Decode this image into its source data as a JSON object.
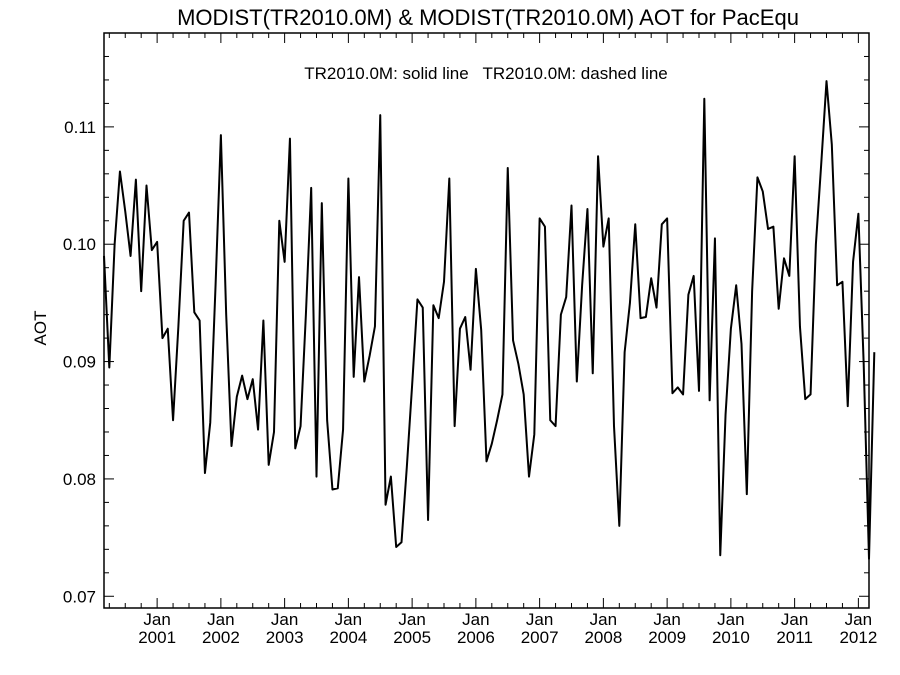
{
  "chart_data": {
    "type": "line",
    "title": "MODIST(TR2010.0M) & MODIST(TR2010.0M)  AOT for PacEqu",
    "annotation": "TR2010.0M: solid line   TR2010.0M: dashed line",
    "xlabel": "",
    "ylabel": "AOT",
    "ylim": [
      0.069,
      0.118
    ],
    "xlim": [
      "2000-03",
      "2012-03"
    ],
    "y_ticks": [
      0.07,
      0.08,
      0.09,
      0.1,
      0.11
    ],
    "y_tick_labels": [
      "0.07",
      "0.08",
      "0.09",
      "0.10",
      "0.11"
    ],
    "x_ticks": [
      {
        "month": "Jan",
        "year": "2001",
        "date": "2001-01"
      },
      {
        "month": "Jan",
        "year": "2002",
        "date": "2002-01"
      },
      {
        "month": "Jan",
        "year": "2003",
        "date": "2003-01"
      },
      {
        "month": "Jan",
        "year": "2004",
        "date": "2004-01"
      },
      {
        "month": "Jan",
        "year": "2005",
        "date": "2005-01"
      },
      {
        "month": "Jan",
        "year": "2006",
        "date": "2006-01"
      },
      {
        "month": "Jan",
        "year": "2007",
        "date": "2007-01"
      },
      {
        "month": "Jan",
        "year": "2008",
        "date": "2008-01"
      },
      {
        "month": "Jan",
        "year": "2009",
        "date": "2009-01"
      },
      {
        "month": "Jan",
        "year": "2010",
        "date": "2010-01"
      },
      {
        "month": "Jan",
        "year": "2011",
        "date": "2011-01"
      },
      {
        "month": "Jan",
        "year": "2012",
        "date": "2012-01"
      }
    ],
    "grid": false,
    "series": [
      {
        "style": "solid",
        "color": "#000000",
        "start": "2000-03",
        "step": "month",
        "values": [
          0.099,
          0.0895,
          0.1,
          0.1062,
          0.1028,
          0.099,
          0.1055,
          0.096,
          0.105,
          0.0995,
          0.1002,
          0.092,
          0.0928,
          0.085,
          0.093,
          0.102,
          0.1027,
          0.0942,
          0.0935,
          0.0805,
          0.0848,
          0.0965,
          0.1093,
          0.094,
          0.0828,
          0.087,
          0.0888,
          0.0868,
          0.0885,
          0.0842,
          0.0935,
          0.0812,
          0.084,
          0.102,
          0.0985,
          0.109,
          0.0826,
          0.0845,
          0.094,
          0.1048,
          0.0802,
          0.1035,
          0.085,
          0.0791,
          0.0792,
          0.0842,
          0.1056,
          0.0887,
          0.0972,
          0.0883,
          0.0905,
          0.093,
          0.111,
          0.0778,
          0.0802,
          0.0742,
          0.0746,
          0.081,
          0.088,
          0.0953,
          0.0946,
          0.0765,
          0.0948,
          0.0937,
          0.0968,
          0.1056,
          0.0845,
          0.0928,
          0.0938,
          0.0893,
          0.0979,
          0.0927,
          0.0815,
          0.083,
          0.085,
          0.0872,
          0.1065,
          0.0918,
          0.0898,
          0.0872,
          0.0802,
          0.0838,
          0.1022,
          0.1015,
          0.085,
          0.0845,
          0.094,
          0.0955,
          0.1033,
          0.0883,
          0.0965,
          0.103,
          0.089,
          0.1075,
          0.0998,
          0.1022,
          0.0845,
          0.076,
          0.0908,
          0.095,
          0.1017,
          0.0937,
          0.0938,
          0.0971,
          0.0946,
          0.1017,
          0.1022,
          0.0873,
          0.0878,
          0.0872,
          0.0957,
          0.0973,
          0.0875,
          0.1124,
          0.0867,
          0.1005,
          0.0735,
          0.0855,
          0.0928,
          0.0965,
          0.0915,
          0.0787,
          0.096,
          0.1057,
          0.1045,
          0.1013,
          0.1015,
          0.0945,
          0.0988,
          0.0973,
          0.1075,
          0.093,
          0.0868,
          0.0872,
          0.1,
          0.1068,
          0.1139,
          0.1085,
          0.0965,
          0.0968,
          0.0862,
          0.0985,
          0.1026,
          0.0898,
          0.0732,
          0.0908
        ]
      }
    ]
  }
}
